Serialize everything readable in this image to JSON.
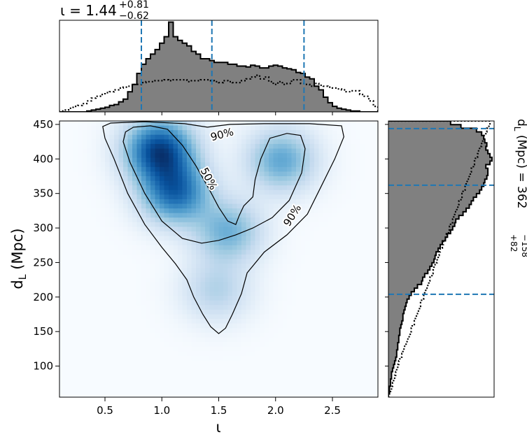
{
  "chart_data": {
    "type": "heatmap",
    "layout": "corner-plot with marginal histograms",
    "colormap": "Blues",
    "top_title": {
      "symbol": "ι",
      "equals": " = ",
      "median": "1.44",
      "upper": "+0.81",
      "lower": "−0.62"
    },
    "right_title": {
      "symbol": "d",
      "subscript": "L",
      "unit": " (Mpc) = ",
      "median": "362",
      "upper": "+82",
      "lower": "−158"
    },
    "xlabel": "ι",
    "ylabel": {
      "symbol": "d",
      "subscript": "L",
      "unit": " (Mpc)"
    },
    "xlim": [
      0.1,
      2.9
    ],
    "ylim": [
      55,
      455
    ],
    "xticks": [
      0.5,
      1.0,
      1.5,
      2.0,
      2.5
    ],
    "xtick_labels": [
      "0.5",
      "1.0",
      "1.5",
      "2.0",
      "2.5"
    ],
    "yticks": [
      100,
      150,
      200,
      250,
      300,
      350,
      400,
      450
    ],
    "ytick_labels": [
      "100",
      "150",
      "200",
      "250",
      "300",
      "350",
      "400",
      "450"
    ],
    "contour_levels": [
      "50%",
      "90%"
    ],
    "contour_labels": [
      {
        "text": "90%",
        "x": 1.53,
        "y": 435,
        "rotation": -15
      },
      {
        "text": "50%",
        "x": 1.41,
        "y": 371,
        "rotation": 62
      },
      {
        "text": "90%",
        "x": 2.15,
        "y": 318,
        "rotation": -58
      }
    ],
    "density_peaks": [
      {
        "x": 0.98,
        "y": 412,
        "weight": 1.0
      },
      {
        "x": 1.12,
        "y": 352,
        "weight": 0.8
      },
      {
        "x": 2.05,
        "y": 398,
        "weight": 0.5
      },
      {
        "x": 1.58,
        "y": 295,
        "weight": 0.45
      },
      {
        "x": 1.48,
        "y": 210,
        "weight": 0.25
      }
    ],
    "contour_50": [
      [
        0.68,
        439
      ],
      [
        0.75,
        446
      ],
      [
        0.9,
        448
      ],
      [
        1.05,
        443
      ],
      [
        1.18,
        420
      ],
      [
        1.3,
        390
      ],
      [
        1.42,
        355
      ],
      [
        1.5,
        330
      ],
      [
        1.58,
        310
      ],
      [
        1.65,
        305
      ],
      [
        1.68,
        318
      ],
      [
        1.72,
        332
      ],
      [
        1.8,
        345
      ],
      [
        1.82,
        370
      ],
      [
        1.87,
        400
      ],
      [
        1.95,
        430
      ],
      [
        2.1,
        437
      ],
      [
        2.22,
        434
      ],
      [
        2.26,
        415
      ],
      [
        2.23,
        380
      ],
      [
        2.12,
        340
      ],
      [
        1.97,
        315
      ],
      [
        1.8,
        300
      ],
      [
        1.65,
        290
      ],
      [
        1.5,
        282
      ],
      [
        1.35,
        278
      ],
      [
        1.18,
        285
      ],
      [
        1.0,
        310
      ],
      [
        0.85,
        350
      ],
      [
        0.72,
        395
      ],
      [
        0.66,
        425
      ],
      [
        0.68,
        439
      ]
    ],
    "contour_90": [
      [
        0.48,
        447
      ],
      [
        0.55,
        452
      ],
      [
        0.85,
        454
      ],
      [
        1.2,
        451
      ],
      [
        1.4,
        446
      ],
      [
        1.6,
        450
      ],
      [
        1.9,
        451
      ],
      [
        2.3,
        451
      ],
      [
        2.58,
        448
      ],
      [
        2.6,
        432
      ],
      [
        2.52,
        400
      ],
      [
        2.4,
        360
      ],
      [
        2.28,
        320
      ],
      [
        2.1,
        290
      ],
      [
        1.9,
        265
      ],
      [
        1.75,
        235
      ],
      [
        1.7,
        205
      ],
      [
        1.62,
        175
      ],
      [
        1.56,
        155
      ],
      [
        1.5,
        147
      ],
      [
        1.43,
        157
      ],
      [
        1.36,
        175
      ],
      [
        1.28,
        200
      ],
      [
        1.22,
        225
      ],
      [
        1.12,
        248
      ],
      [
        1.0,
        272
      ],
      [
        0.85,
        305
      ],
      [
        0.7,
        350
      ],
      [
        0.58,
        400
      ],
      [
        0.5,
        430
      ],
      [
        0.48,
        447
      ]
    ],
    "top_hist": {
      "edges_range": [
        0.1,
        2.9
      ],
      "posterior": [
        0,
        0,
        0,
        0,
        0,
        0,
        1,
        2,
        3,
        4,
        5,
        7,
        8,
        11,
        14,
        22,
        30,
        42,
        52,
        58,
        63,
        68,
        75,
        82,
        98,
        82,
        78,
        75,
        72,
        66,
        63,
        58,
        58,
        56,
        54,
        54,
        54,
        52,
        52,
        50,
        50,
        49,
        51,
        50,
        48,
        48,
        50,
        51,
        50,
        48,
        47,
        46,
        43,
        42,
        38,
        36,
        28,
        24,
        16,
        10,
        6,
        4,
        3,
        2,
        1,
        1,
        0,
        0,
        0,
        0
      ],
      "prior": [
        1,
        2,
        4,
        6,
        7,
        9,
        12,
        15,
        17,
        19,
        21,
        22,
        24,
        26,
        27,
        28,
        30,
        30,
        32,
        33,
        33,
        34,
        34,
        35,
        34,
        35,
        35,
        35,
        33,
        34,
        34,
        35,
        35,
        34,
        33,
        32,
        34,
        33,
        32,
        32,
        34,
        36,
        38,
        40,
        36,
        38,
        33,
        30,
        33,
        30,
        31,
        35,
        35,
        31,
        30,
        28,
        31,
        29,
        28,
        27,
        26,
        25,
        24,
        22,
        23,
        23,
        19,
        17,
        12,
        6
      ]
    },
    "right_hist": {
      "edges_range": [
        55,
        455
      ],
      "posterior": [
        0,
        1,
        1,
        2,
        2,
        3,
        3,
        4,
        5,
        6,
        7,
        8,
        8,
        9,
        9,
        10,
        10,
        11,
        11,
        12,
        13,
        14,
        14,
        15,
        16,
        17,
        18,
        20,
        22,
        25,
        28,
        32,
        33,
        35,
        38,
        40,
        42,
        44,
        45,
        46,
        48,
        50,
        52,
        55,
        57,
        60,
        62,
        64,
        65,
        68,
        72,
        75,
        78,
        80,
        82,
        85,
        88,
        90,
        92,
        93,
        95,
        96,
        96,
        94,
        98,
        100,
        98,
        96,
        94,
        95,
        93,
        92,
        90,
        85,
        70,
        60
      ],
      "prior": [
        1,
        2,
        3,
        4,
        5,
        6,
        7,
        8,
        9,
        10,
        11,
        13,
        14,
        15,
        17,
        18,
        20,
        21,
        22,
        23,
        25,
        26,
        27,
        29,
        30,
        31,
        32,
        34,
        35,
        36,
        38,
        39,
        40,
        42,
        43,
        44,
        45,
        47,
        48,
        49,
        50,
        52,
        53,
        55,
        56,
        58,
        59,
        60,
        62,
        63,
        64,
        66,
        67,
        68,
        70,
        71,
        72,
        74,
        75,
        76,
        78,
        79,
        80,
        82,
        83,
        84,
        86,
        87,
        88,
        90,
        91,
        92,
        94,
        95,
        97,
        98
      ]
    },
    "quantile_lines_x": [
      0.82,
      1.44,
      2.25
    ],
    "quantile_lines_y": [
      204,
      362,
      444
    ],
    "line_color": "#1f77b4",
    "hist_fill": "#808080"
  }
}
